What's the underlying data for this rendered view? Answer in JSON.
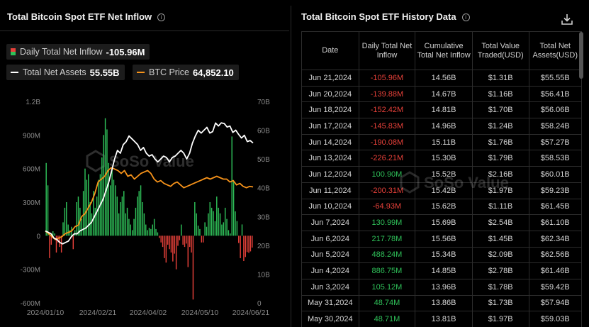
{
  "left_panel": {
    "title": "Total Bitcoin Spot ETF Net Inflow",
    "legend": {
      "inflow_label": "Daily Total Net Inflow",
      "inflow_value": "-105.96M",
      "assets_label": "Total Net Assets",
      "assets_value": "55.55B",
      "btc_label": "BTC Price",
      "btc_value": "64,852.10"
    },
    "watermark": "SoSo Value"
  },
  "right_panel": {
    "title": "Total Bitcoin Spot ETF History Data",
    "watermark": "SoSo Value",
    "columns": [
      "Date",
      "Daily Total Net Inflow",
      "Cumulative Total Net Inflow",
      "Total Value Traded(USD)",
      "Total Net Assets(USD)"
    ],
    "rows": [
      [
        "Jun 21,2024",
        "-105.96M",
        "14.56B",
        "$1.31B",
        "$55.55B"
      ],
      [
        "Jun 20,2024",
        "-139.88M",
        "14.67B",
        "$1.16B",
        "$56.41B"
      ],
      [
        "Jun 18,2024",
        "-152.42M",
        "14.81B",
        "$1.70B",
        "$56.06B"
      ],
      [
        "Jun 17,2024",
        "-145.83M",
        "14.96B",
        "$1.24B",
        "$58.24B"
      ],
      [
        "Jun 14,2024",
        "-190.08M",
        "15.11B",
        "$1.76B",
        "$57.27B"
      ],
      [
        "Jun 13,2024",
        "-226.21M",
        "15.30B",
        "$1.79B",
        "$58.53B"
      ],
      [
        "Jun 12,2024",
        "100.90M",
        "15.52B",
        "$2.16B",
        "$60.01B"
      ],
      [
        "Jun 11,2024",
        "-200.31M",
        "15.42B",
        "$1.97B",
        "$59.23B"
      ],
      [
        "Jun 10,2024",
        "-64.93M",
        "15.62B",
        "$1.11B",
        "$61.45B"
      ],
      [
        "Jun 7,2024",
        "130.99M",
        "15.69B",
        "$2.54B",
        "$61.10B"
      ],
      [
        "Jun 6,2024",
        "217.78M",
        "15.56B",
        "$1.45B",
        "$62.34B"
      ],
      [
        "Jun 5,2024",
        "488.24M",
        "15.34B",
        "$2.09B",
        "$62.56B"
      ],
      [
        "Jun 4,2024",
        "886.75M",
        "14.85B",
        "$2.78B",
        "$61.46B"
      ],
      [
        "Jun 3,2024",
        "105.12M",
        "13.96B",
        "$1.78B",
        "$59.42B"
      ],
      [
        "May 31,2024",
        "48.74M",
        "13.86B",
        "$1.73B",
        "$57.94B"
      ],
      [
        "May 30,2024",
        "48.71M",
        "13.81B",
        "$1.97B",
        "$59.03B"
      ]
    ]
  },
  "colors": {
    "positive": "#2fc159",
    "negative": "#e8413a",
    "assets_line": "#ffffff",
    "btc_line": "#f7931a",
    "background": "#000000"
  },
  "icons": [
    "info-icon",
    "download-icon"
  ],
  "chart_data": {
    "type": "bar",
    "title": "Total Bitcoin Spot ETF Net Inflow",
    "x_tick_labels": [
      "2024/01/10",
      "2024/02/21",
      "2024/04/02",
      "2024/05/10",
      "2024/06/21"
    ],
    "y_left_ticks": [
      "1.2B",
      "900M",
      "600M",
      "300M",
      "0",
      "-300M",
      "-600M"
    ],
    "y_left_range": [
      -600,
      1200
    ],
    "y_left_unit": "M USD",
    "y_right_ticks": [
      "70B",
      "60B",
      "50B",
      "40B",
      "30B",
      "20B",
      "10B",
      "0"
    ],
    "y_right_range": [
      0,
      70
    ],
    "grid": false,
    "series": [
      {
        "name": "Daily Total Net Inflow",
        "kind": "bar",
        "axis": "left",
        "values": [
          650,
          450,
          -200,
          -80,
          40,
          20,
          -150,
          -60,
          -100,
          -150,
          120,
          250,
          300,
          100,
          50,
          80,
          -120,
          50,
          300,
          350,
          250,
          150,
          400,
          600,
          500,
          550,
          300,
          200,
          400,
          250,
          350,
          500,
          550,
          700,
          900,
          1050,
          950,
          650,
          450,
          600,
          500,
          450,
          350,
          200,
          300,
          350,
          400,
          200,
          250,
          150,
          100,
          50,
          150,
          250,
          350,
          400,
          450,
          300,
          200,
          100,
          50,
          70,
          60,
          100,
          150,
          60,
          30,
          -20,
          -60,
          -100,
          -200,
          -240,
          -80,
          -120,
          -150,
          -230,
          -160,
          -300,
          -90,
          -40,
          100,
          -80,
          -100,
          -70,
          -280,
          -100,
          -150,
          -570,
          300,
          200,
          90,
          60,
          -60,
          -60,
          120,
          80,
          200,
          300,
          250,
          220,
          130,
          350,
          250,
          200,
          100,
          120,
          250,
          150,
          50,
          20,
          886.75,
          488.24,
          217.78,
          130.99,
          -64.93,
          -200.31,
          100.9,
          -226.21,
          -190.08,
          -145.83,
          -152.42,
          -139.88,
          -105.96
        ]
      },
      {
        "name": "Total Net Assets",
        "kind": "line",
        "axis": "right",
        "values": [
          25,
          24.5,
          24,
          22.5,
          22,
          21,
          20.5,
          21,
          21.5,
          23,
          24,
          24,
          25,
          25.5,
          26,
          27,
          28,
          30,
          32,
          34,
          36,
          39,
          42,
          46,
          50,
          53,
          52,
          55,
          56,
          58,
          57,
          56,
          55,
          53,
          54,
          52,
          51,
          51.5,
          50,
          49,
          50,
          51,
          50.5,
          49,
          50.5,
          51,
          52,
          53,
          52,
          50,
          52,
          55.5,
          58,
          60,
          59,
          60,
          61,
          59,
          59.5,
          62.5,
          61.46,
          62.56,
          62.34,
          61.1,
          61.45,
          59.23,
          60.01,
          58.53,
          57.27,
          58.24,
          56.06,
          56.41,
          55.55
        ]
      },
      {
        "name": "BTC Price",
        "kind": "line",
        "axis": "right",
        "values": [
          25,
          24,
          23,
          22,
          22.5,
          23,
          24,
          24.5,
          25,
          26.5,
          27,
          30,
          31,
          33,
          35,
          38,
          42,
          43,
          44,
          46,
          47,
          46.5,
          46,
          45,
          46,
          44,
          44.5,
          43,
          44,
          45,
          45.5,
          46,
          45,
          43,
          42,
          42.5,
          41.5,
          41,
          40.5,
          41.5,
          42,
          41,
          40,
          40.5,
          41,
          41.5,
          42,
          42.5,
          43,
          43.5,
          43,
          43.5,
          44,
          43.5,
          43,
          43,
          42,
          42.5,
          41,
          41.5,
          40.5,
          40,
          40.5,
          40.3
        ]
      }
    ]
  }
}
